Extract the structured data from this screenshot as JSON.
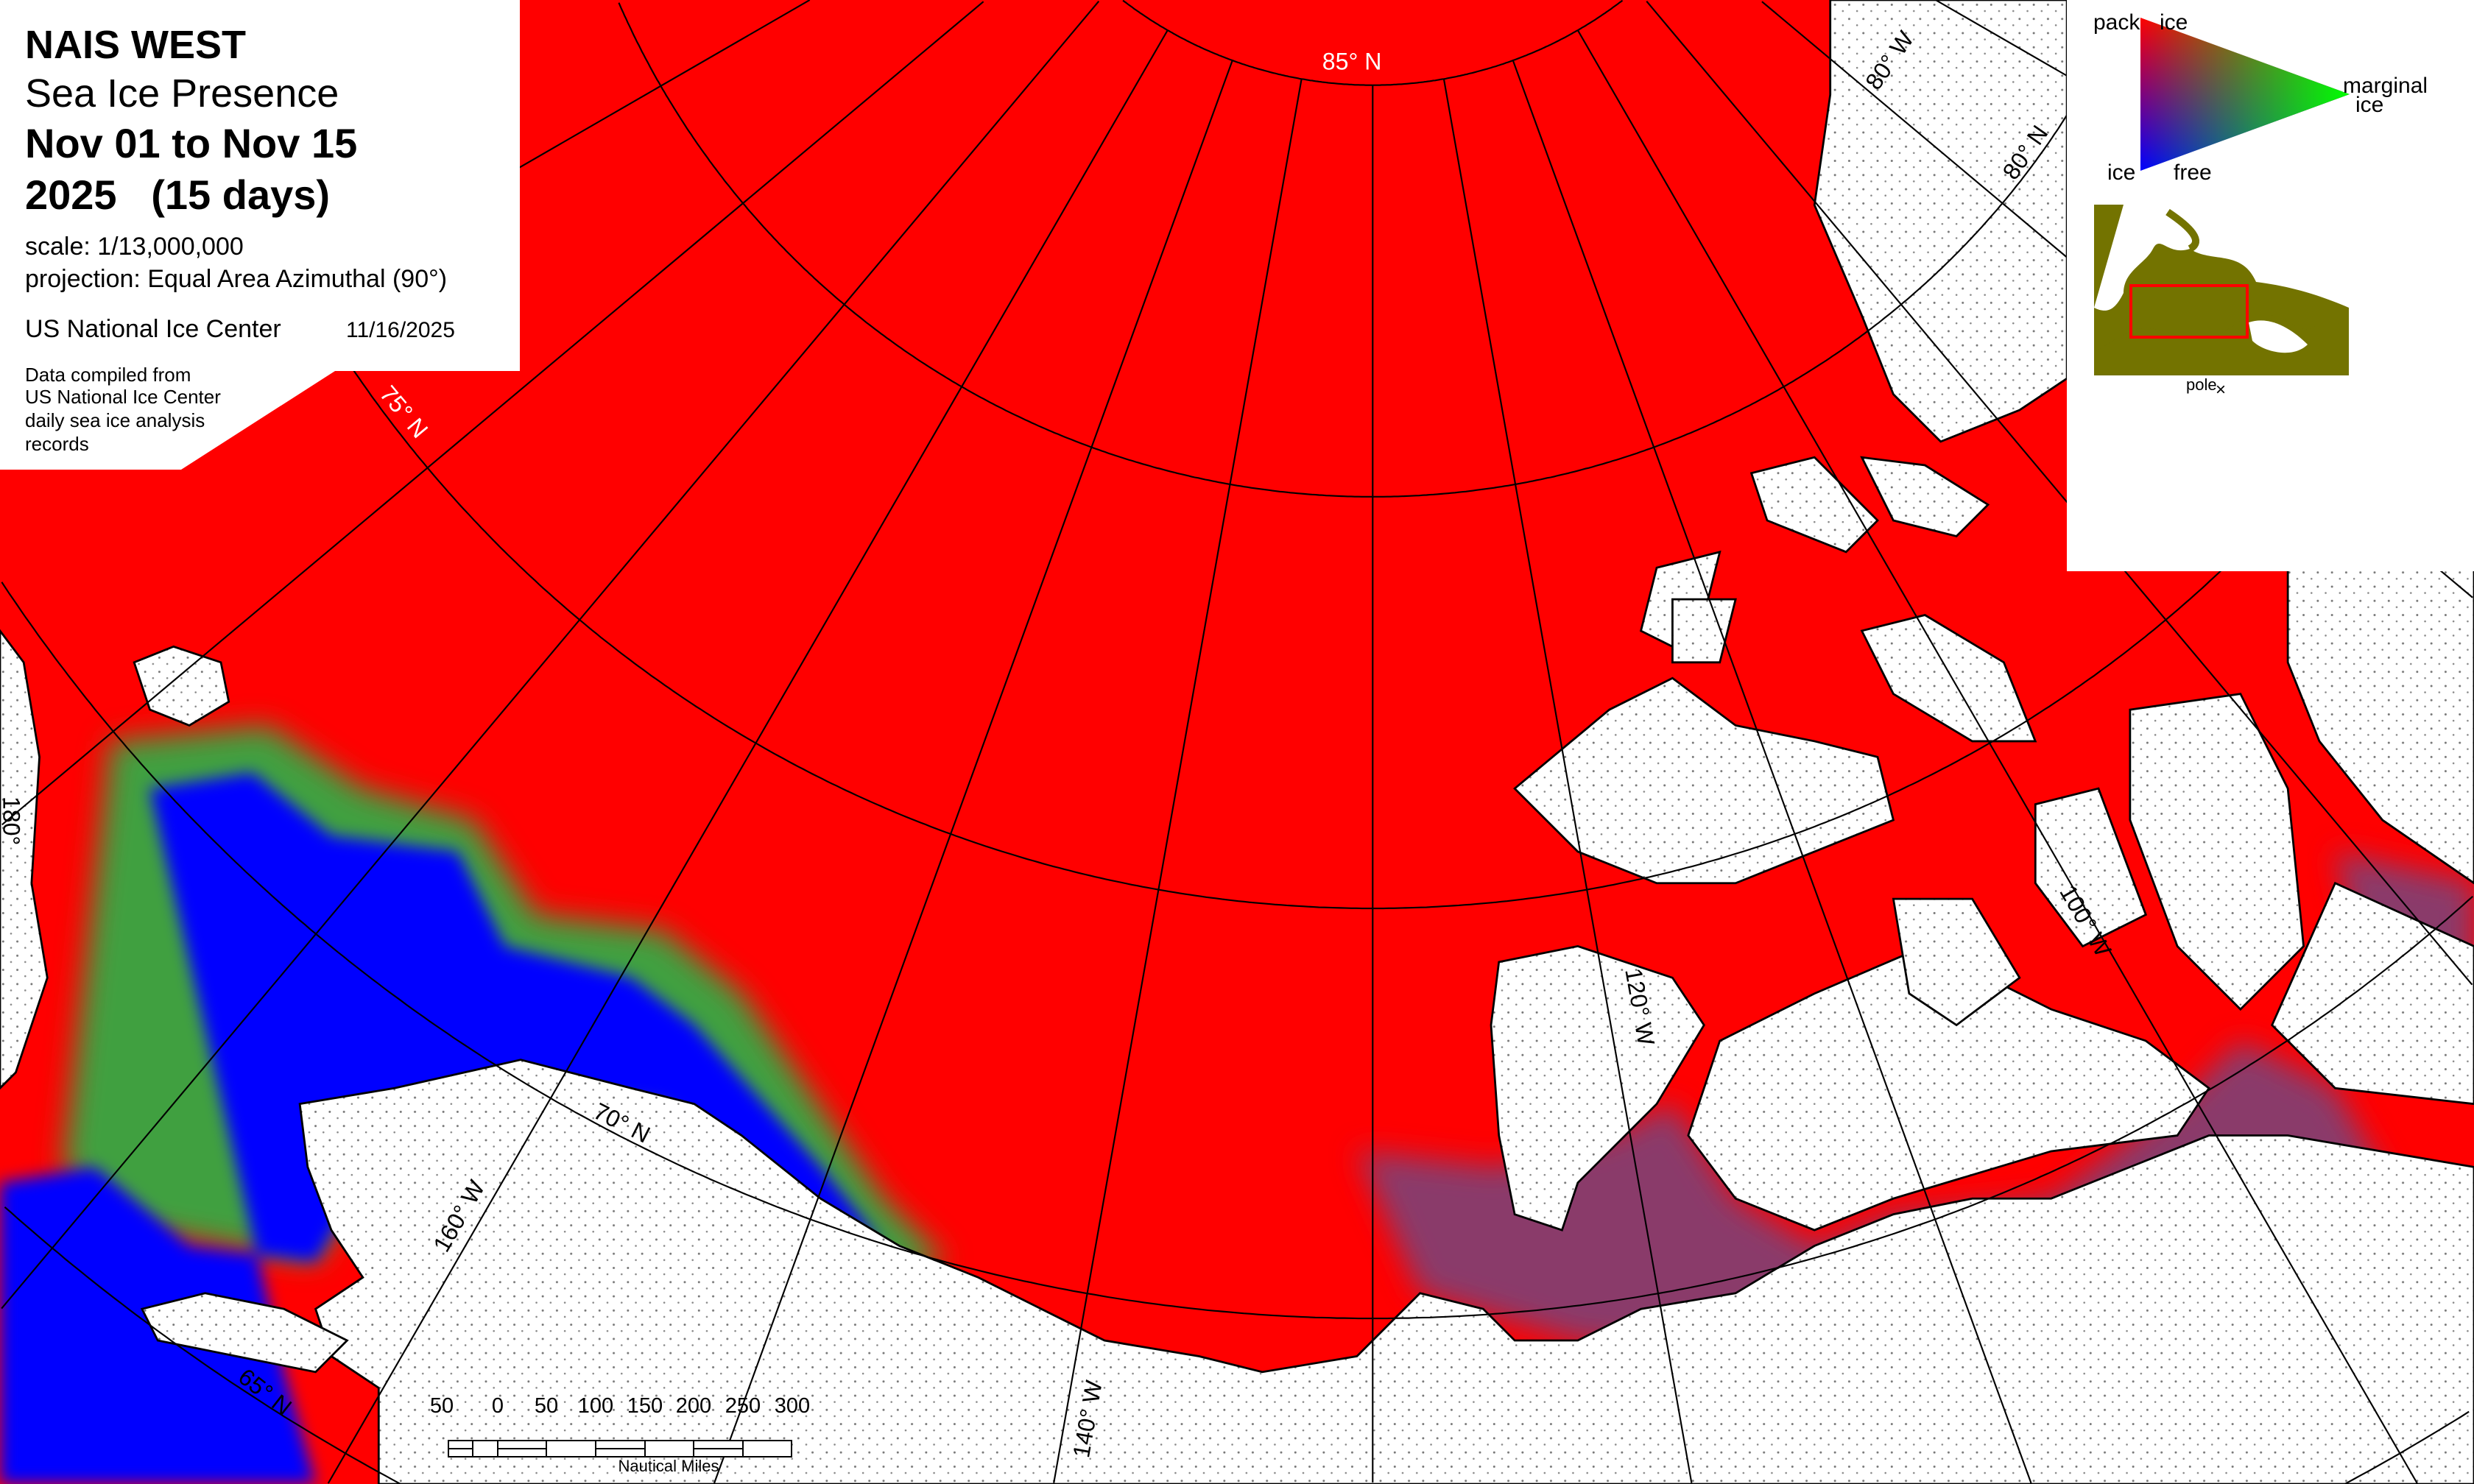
{
  "info": {
    "region": "NAIS WEST",
    "product": "Sea Ice Presence",
    "period": "Nov 01 to Nov 15",
    "year_days": "2025   (15 days)",
    "scale": "scale: 1/13,000,000",
    "projection": "projection: Equal Area Azimuthal (90°)",
    "agency": "US National Ice Center",
    "date": "11/16/2025",
    "source": [
      "Data compiled from",
      "US National Ice Center",
      "daily sea ice analysis",
      "records"
    ]
  },
  "legend": {
    "pack_a": "pack",
    "pack_b": "ice",
    "marginal_a": "marginal",
    "marginal_b": "ice",
    "free_a": "ice",
    "free_b": "free",
    "colors": {
      "pack_ice": "#ff0000",
      "marginal_ice": "#00ff00",
      "ice_free": "#0000ff"
    },
    "inset_label": "pole",
    "inset_marker": "×",
    "inset_land_color": "#737300",
    "inset_box_color": "#ff0000"
  },
  "graticule_labels": {
    "lat85": "85° N",
    "lat80": "80° N",
    "lat75": "75° N",
    "lat70": "70° N",
    "lat65": "65° N",
    "lon180": "180°",
    "lon160": "160° W",
    "lon140": "140° W",
    "lon120": "120° W",
    "lon100": "100° W",
    "lon80": "80° W"
  },
  "scalebar": {
    "ticks": [
      "50",
      "0",
      "50",
      "100",
      "150",
      "200",
      "250",
      "300"
    ],
    "unit": "Nautical Miles"
  }
}
